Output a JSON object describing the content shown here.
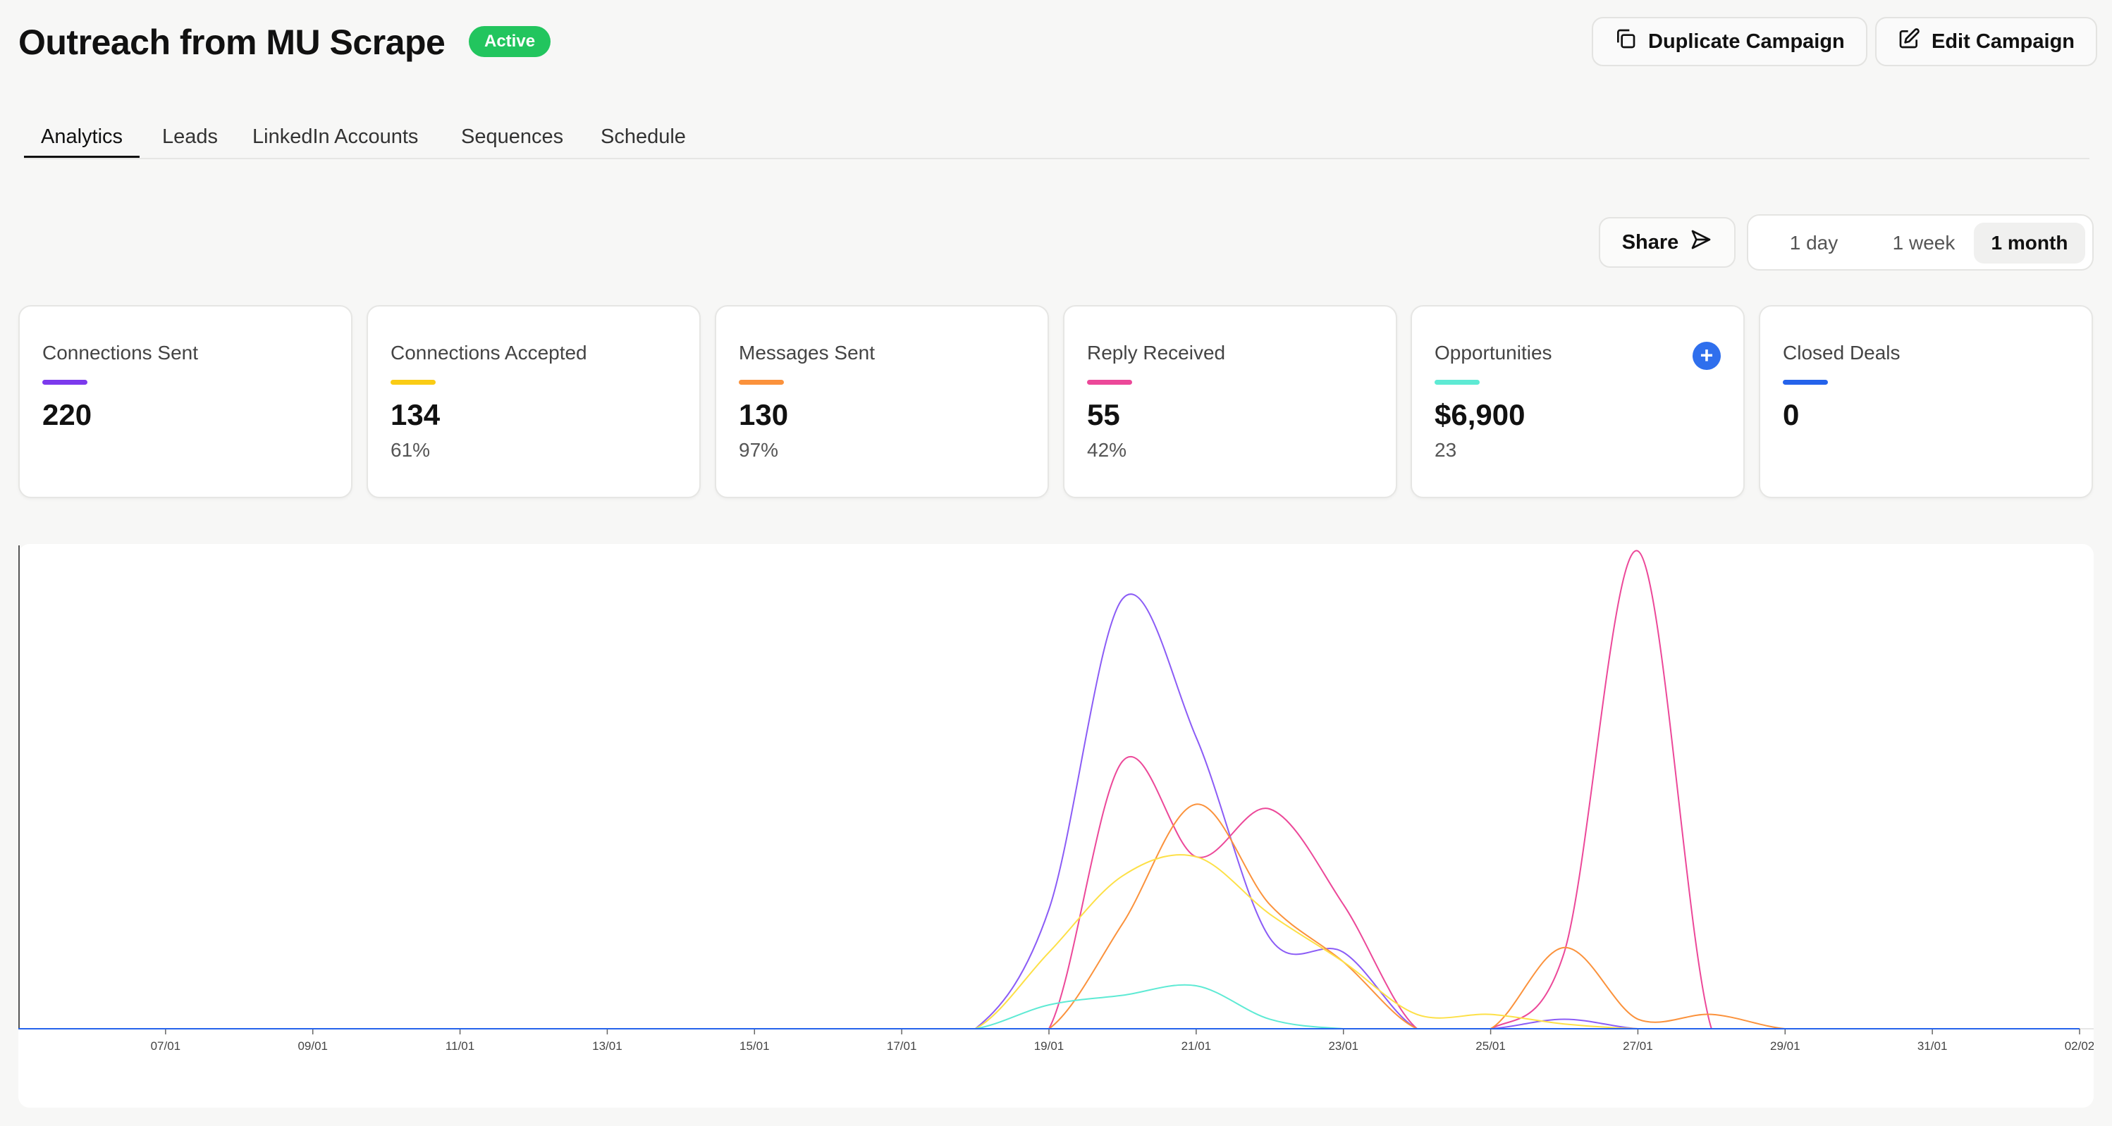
{
  "header": {
    "title": "Outreach from MU Scrape",
    "status_badge": "Active",
    "duplicate_label": "Duplicate Campaign",
    "edit_label": "Edit Campaign"
  },
  "tabs": [
    {
      "label": "Analytics",
      "active": true
    },
    {
      "label": "Leads",
      "active": false
    },
    {
      "label": "LinkedIn Accounts",
      "active": false
    },
    {
      "label": "Sequences",
      "active": false
    },
    {
      "label": "Schedule",
      "active": false
    }
  ],
  "toolbar": {
    "share_label": "Share",
    "ranges": [
      {
        "label": "1 day",
        "selected": false
      },
      {
        "label": "1 week",
        "selected": false
      },
      {
        "label": "1 month",
        "selected": true
      }
    ]
  },
  "cards": [
    {
      "label": "Connections Sent",
      "value": "220",
      "sub": "",
      "color": "#7c3aed"
    },
    {
      "label": "Connections Accepted",
      "value": "134",
      "sub": "61%",
      "color": "#facc15"
    },
    {
      "label": "Messages Sent",
      "value": "130",
      "sub": "97%",
      "color": "#fb923c"
    },
    {
      "label": "Reply Received",
      "value": "55",
      "sub": "42%",
      "color": "#ec4899"
    },
    {
      "label": "Opportunities",
      "value": "$6,900",
      "sub": "23",
      "color": "#5eead4",
      "action": "+"
    },
    {
      "label": "Closed Deals",
      "value": "0",
      "sub": "",
      "color": "#2563eb"
    }
  ],
  "chart_data": {
    "type": "line",
    "x_ticks": [
      "07/01",
      "09/01",
      "11/01",
      "13/01",
      "15/01",
      "17/01",
      "19/01",
      "21/01",
      "23/01",
      "25/01",
      "27/01",
      "29/01",
      "31/01",
      "02/02"
    ],
    "x": [
      "05/01",
      "06/01",
      "07/01",
      "08/01",
      "09/01",
      "10/01",
      "11/01",
      "12/01",
      "13/01",
      "14/01",
      "15/01",
      "16/01",
      "17/01",
      "18/01",
      "19/01",
      "20/01",
      "21/01",
      "22/01",
      "23/01",
      "24/01",
      "25/01",
      "26/01",
      "27/01",
      "28/01",
      "29/01",
      "30/01",
      "31/01",
      "01/02",
      "02/02"
    ],
    "ylim": [
      0,
      100
    ],
    "grid": false,
    "series": [
      {
        "color": "#8b5cf6",
        "values": [
          0,
          0,
          0,
          0,
          0,
          0,
          0,
          0,
          0,
          0,
          0,
          0,
          0,
          0,
          25,
          90,
          61,
          19,
          16,
          0,
          0,
          2,
          0,
          0,
          0,
          0,
          0,
          0,
          0
        ]
      },
      {
        "color": "#ec4899",
        "values": [
          0,
          0,
          0,
          0,
          0,
          0,
          0,
          0,
          0,
          0,
          0,
          0,
          0,
          0,
          0,
          56,
          36,
          46,
          26,
          0,
          0,
          16,
          100,
          0,
          0,
          0,
          0,
          0,
          0
        ]
      },
      {
        "color": "#fb923c",
        "values": [
          0,
          0,
          0,
          0,
          0,
          0,
          0,
          0,
          0,
          0,
          0,
          0,
          0,
          0,
          0,
          22,
          47,
          26,
          14,
          0,
          0,
          17,
          2,
          3,
          0,
          0,
          0,
          0,
          0
        ]
      },
      {
        "color": "#fde047",
        "values": [
          0,
          0,
          0,
          0,
          0,
          0,
          0,
          0,
          0,
          0,
          0,
          0,
          0,
          0,
          16,
          32,
          36,
          24,
          14,
          3,
          3,
          1,
          0,
          0,
          0,
          0,
          0,
          0,
          0
        ]
      },
      {
        "color": "#5eead4",
        "values": [
          0,
          0,
          0,
          0,
          0,
          0,
          0,
          0,
          0,
          0,
          0,
          0,
          0,
          0,
          5,
          7,
          9,
          2,
          0,
          0,
          0,
          0,
          0,
          0,
          0,
          0,
          0,
          0,
          0
        ]
      },
      {
        "color": "#2563eb",
        "values": [
          0,
          0,
          0,
          0,
          0,
          0,
          0,
          0,
          0,
          0,
          0,
          0,
          0,
          0,
          0,
          0,
          0,
          0,
          0,
          0,
          0,
          0,
          0,
          0,
          0,
          0,
          0,
          0,
          0
        ]
      }
    ]
  }
}
